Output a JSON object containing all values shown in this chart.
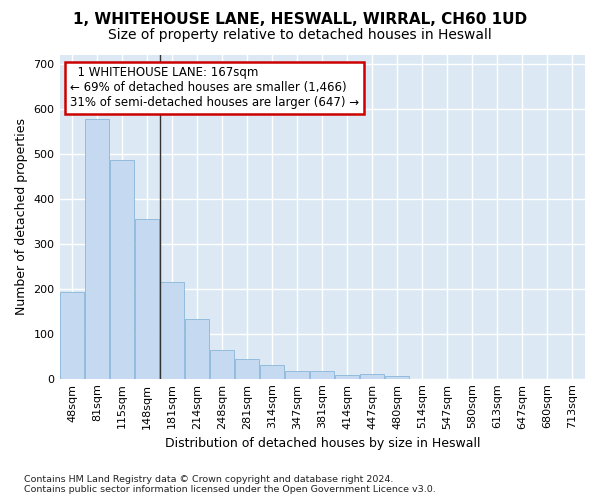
{
  "title_line1": "1, WHITEHOUSE LANE, HESWALL, WIRRAL, CH60 1UD",
  "title_line2": "Size of property relative to detached houses in Heswall",
  "xlabel": "Distribution of detached houses by size in Heswall",
  "ylabel": "Number of detached properties",
  "footnote1": "Contains HM Land Registry data © Crown copyright and database right 2024.",
  "footnote2": "Contains public sector information licensed under the Open Government Licence v3.0.",
  "bin_labels": [
    "48sqm",
    "81sqm",
    "115sqm",
    "148sqm",
    "181sqm",
    "214sqm",
    "248sqm",
    "281sqm",
    "314sqm",
    "347sqm",
    "381sqm",
    "414sqm",
    "447sqm",
    "480sqm",
    "514sqm",
    "547sqm",
    "580sqm",
    "613sqm",
    "647sqm",
    "680sqm",
    "713sqm"
  ],
  "bar_values": [
    193,
    578,
    487,
    355,
    215,
    133,
    63,
    44,
    31,
    16,
    16,
    9,
    10,
    6,
    0,
    0,
    0,
    0,
    0,
    0,
    0
  ],
  "bar_color": "#c5d9f0",
  "bar_edge_color": "#7bafd4",
  "annotation_box_text": "  1 WHITEHOUSE LANE: 167sqm  \n← 69% of detached houses are smaller (1,466)\n31% of semi-detached houses are larger (647) →",
  "annotation_box_color": "white",
  "annotation_box_edge_color": "#cc0000",
  "property_line_bin": 3,
  "ylim": [
    0,
    720
  ],
  "yticks": [
    0,
    100,
    200,
    300,
    400,
    500,
    600,
    700
  ],
  "background_color": "#dce9f5",
  "grid_color": "white",
  "title_fontsize": 11,
  "subtitle_fontsize": 10,
  "axis_label_fontsize": 9,
  "tick_fontsize": 8,
  "annot_fontsize": 8.5
}
